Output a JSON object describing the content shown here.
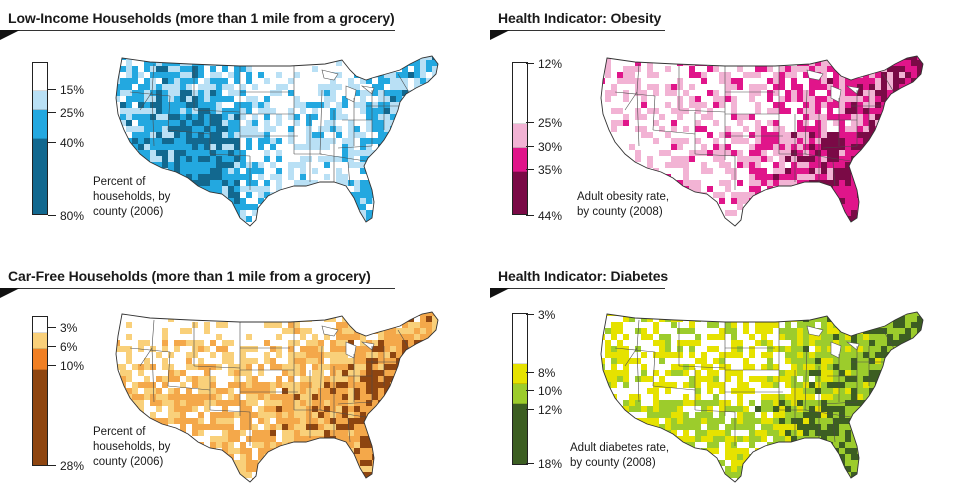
{
  "panels": [
    {
      "id": "low-income",
      "title": "Low-Income Households (more than 1 mile from a grocery)",
      "ticks": [
        "15%",
        "25%",
        "40%",
        "80%"
      ],
      "tick_values": [
        15,
        25,
        40,
        80
      ],
      "legend_min": 0,
      "colors": [
        "#ffffff",
        "#b9e0f5",
        "#23a8e0",
        "#12688f"
      ],
      "caption": "Percent of\nhouseholds, by\ncounty (2006)",
      "map_colors": [
        "#ffffff",
        "#b9e0f5",
        "#23a8e0",
        "#12688f",
        "#4bc0ea"
      ]
    },
    {
      "id": "obesity",
      "title": "Health Indicator: Obesity",
      "ticks": [
        "12%",
        "25%",
        "30%",
        "35%",
        "44%"
      ],
      "tick_values": [
        12,
        25,
        30,
        35,
        44
      ],
      "legend_min": 12,
      "colors": [
        "#ffffff",
        "#f2b3d4",
        "#e0158a",
        "#7a0a46"
      ],
      "caption": "Adult obesity rate,\nby county (2008)",
      "map_colors": [
        "#ffffff",
        "#f2b3d4",
        "#e0158a",
        "#7a0a46",
        "#f2b3d4"
      ]
    },
    {
      "id": "car-free",
      "title": "Car-Free Households (more than 1 mile from a grocery)",
      "ticks": [
        "3%",
        "6%",
        "10%",
        "28%"
      ],
      "tick_values": [
        3,
        6,
        10,
        28
      ],
      "legend_min": 0,
      "colors": [
        "#ffffff",
        "#f9d07a",
        "#f07f23",
        "#8e4510"
      ],
      "caption": "Percent of\nhouseholds, by\ncounty (2006)",
      "map_colors": [
        "#ffffff",
        "#f9d07a",
        "#f4a84a",
        "#8e4510",
        "#f7c063"
      ]
    },
    {
      "id": "diabetes",
      "title": "Health Indicator: Diabetes",
      "ticks": [
        "3%",
        "8%",
        "10%",
        "12%",
        "18%"
      ],
      "tick_values": [
        3,
        8,
        10,
        12,
        18
      ],
      "legend_min": 3,
      "colors": [
        "#ffffff",
        "#e6e200",
        "#9ccc2c",
        "#3c5e22"
      ],
      "caption": "Adult diabetes rate,\nby county (2008)",
      "map_colors": [
        "#ffffff",
        "#e6e200",
        "#9ccc2c",
        "#3c5e22",
        "#c3e05a"
      ]
    }
  ]
}
